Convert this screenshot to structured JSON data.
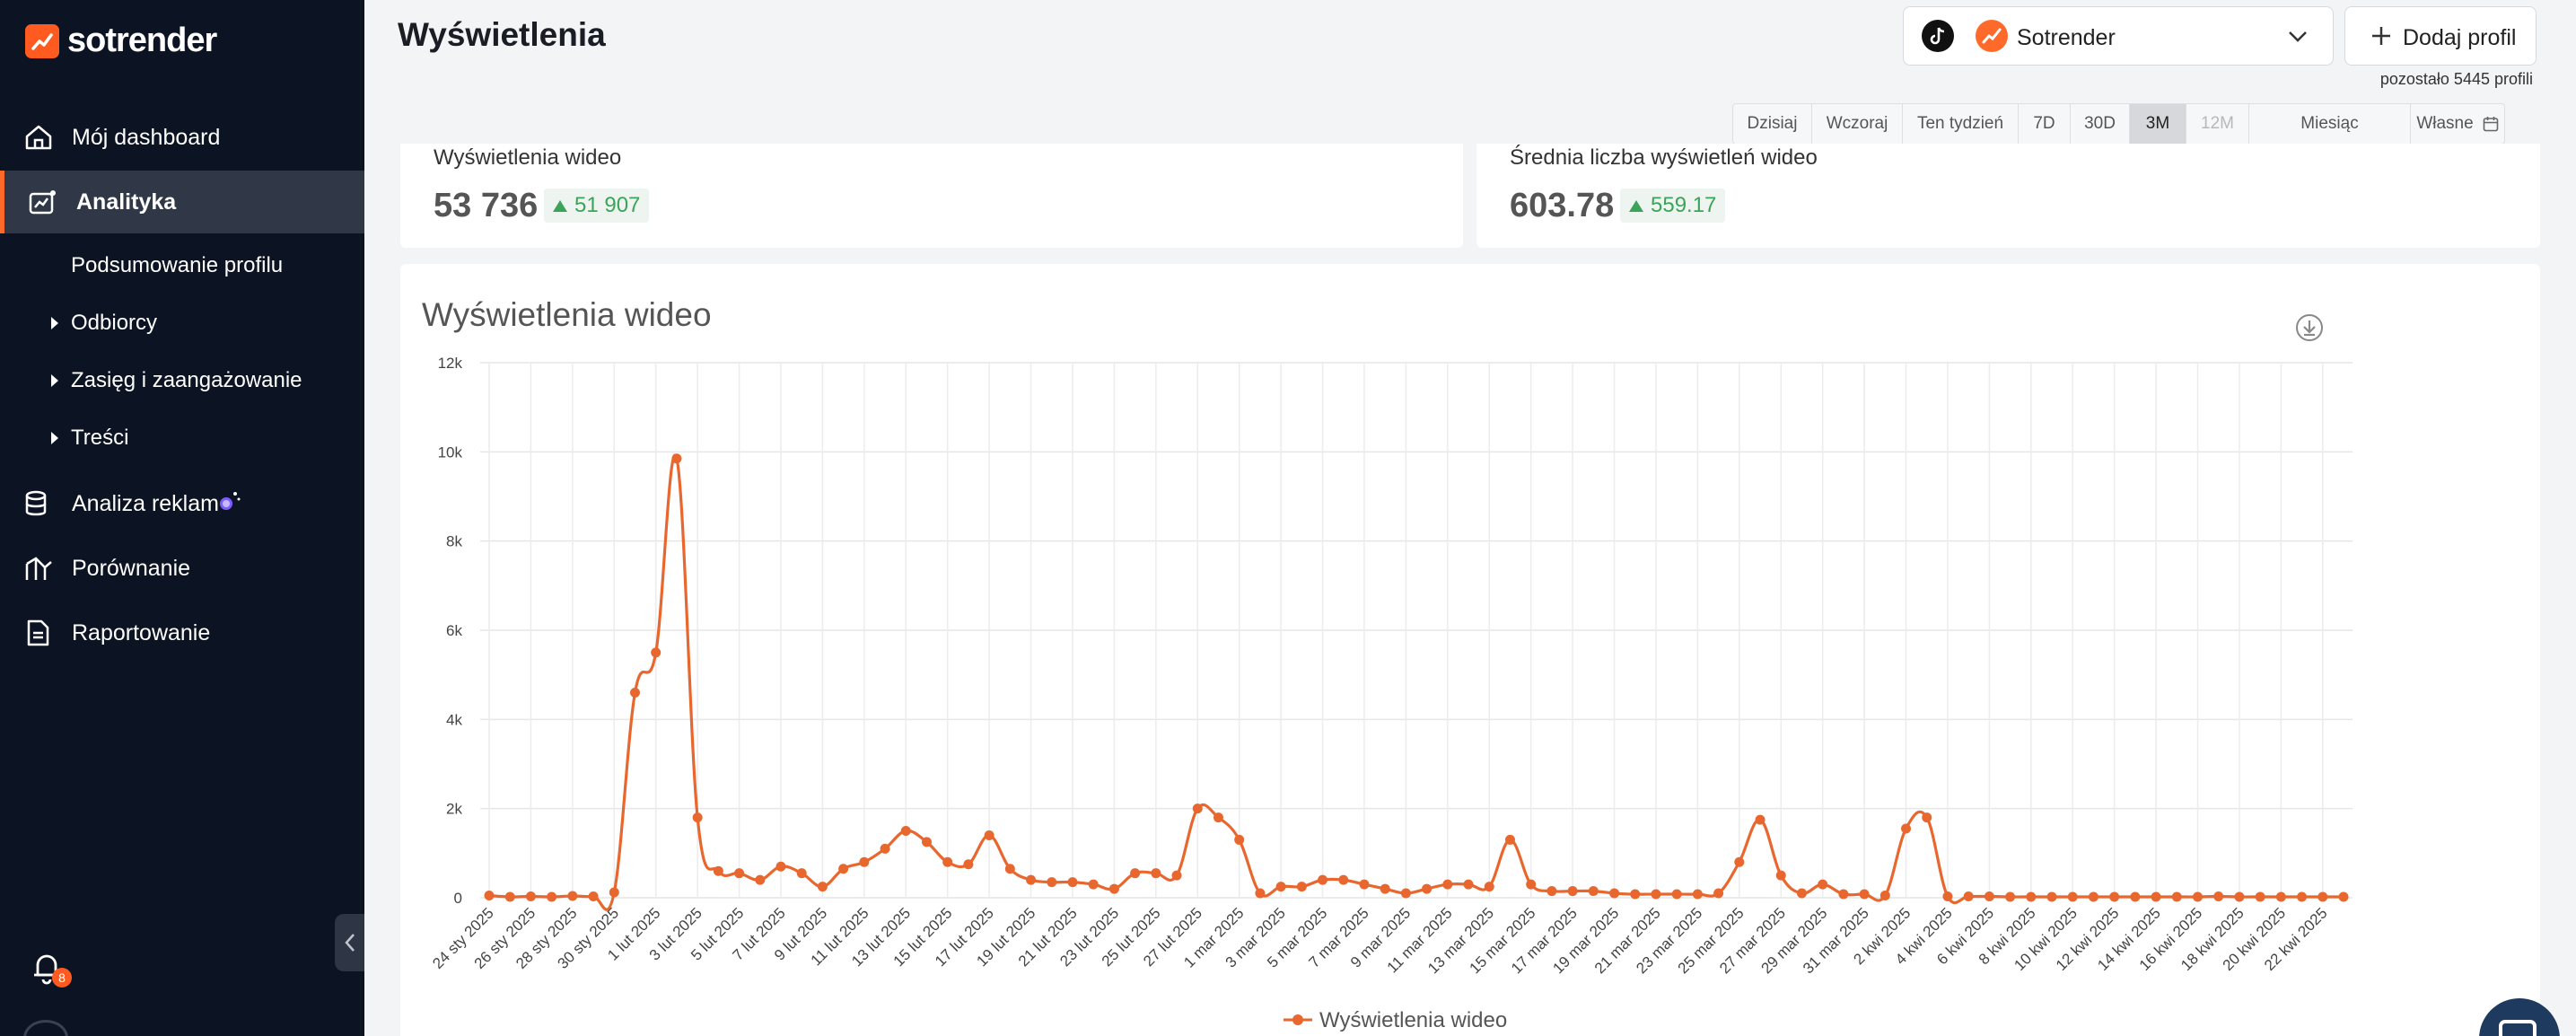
{
  "brand": {
    "name": "sotrender",
    "accent": "#ff6a2a"
  },
  "sidebar": {
    "items": [
      {
        "label": "Mój dashboard",
        "icon": "home-icon"
      },
      {
        "label": "Analityka",
        "icon": "analytics-icon",
        "active": true
      },
      {
        "label": "Analiza reklam",
        "icon": "ads-database-icon"
      },
      {
        "label": "Porównanie",
        "icon": "compare-icon"
      },
      {
        "label": "Raportowanie",
        "icon": "report-icon"
      }
    ],
    "subitems": [
      {
        "label": "Podsumowanie profilu"
      },
      {
        "label": "Odbiorcy"
      },
      {
        "label": "Zasięg i zaangażowanie"
      },
      {
        "label": "Treści"
      }
    ],
    "notifications_count": "8"
  },
  "header": {
    "title": "Wyświetlenia",
    "profile_name": "Sotrender",
    "add_profile_label": "Dodaj profil",
    "profiles_left": "pozostało 5445 profili"
  },
  "date_range": {
    "options": [
      "Dzisiaj",
      "Wczoraj",
      "Ten tydzień",
      "7D",
      "30D",
      "3M",
      "12M",
      "Miesiąc",
      "Własne"
    ],
    "selected": "3M",
    "disabled": [
      "12M"
    ]
  },
  "kpis": [
    {
      "label": "Wyświetlenia wideo",
      "value": "53 736",
      "delta": "51 907",
      "trend": "up"
    },
    {
      "label": "Średnia liczba wyświetleń wideo",
      "value": "603.78",
      "delta": "559.17",
      "trend": "up"
    }
  ],
  "chart_data": {
    "type": "line",
    "title": "Wyświetlenia wideo",
    "series": [
      {
        "name": "Wyświetlenia wideo",
        "color": "#e8672e"
      }
    ],
    "x": [
      "24 sty 2025",
      "25 sty 2025",
      "26 sty 2025",
      "27 sty 2025",
      "28 sty 2025",
      "29 sty 2025",
      "30 sty 2025",
      "31 sty 2025",
      "1 lut 2025",
      "2 lut 2025",
      "3 lut 2025",
      "4 lut 2025",
      "5 lut 2025",
      "6 lut 2025",
      "7 lut 2025",
      "8 lut 2025",
      "9 lut 2025",
      "10 lut 2025",
      "11 lut 2025",
      "12 lut 2025",
      "13 lut 2025",
      "14 lut 2025",
      "15 lut 2025",
      "16 lut 2025",
      "17 lut 2025",
      "18 lut 2025",
      "19 lut 2025",
      "20 lut 2025",
      "21 lut 2025",
      "22 lut 2025",
      "23 lut 2025",
      "24 lut 2025",
      "25 lut 2025",
      "26 lut 2025",
      "27 lut 2025",
      "28 lut 2025",
      "1 mar 2025",
      "2 mar 2025",
      "3 mar 2025",
      "4 mar 2025",
      "5 mar 2025",
      "6 mar 2025",
      "7 mar 2025",
      "8 mar 2025",
      "9 mar 2025",
      "10 mar 2025",
      "11 mar 2025",
      "12 mar 2025",
      "13 mar 2025",
      "14 mar 2025",
      "15 mar 2025",
      "16 mar 2025",
      "17 mar 2025",
      "18 mar 2025",
      "19 mar 2025",
      "20 mar 2025",
      "21 mar 2025",
      "22 mar 2025",
      "23 mar 2025",
      "24 mar 2025",
      "25 mar 2025",
      "26 mar 2025",
      "27 mar 2025",
      "28 mar 2025",
      "29 mar 2025",
      "30 mar 2025",
      "31 mar 2025",
      "1 kwi 2025",
      "2 kwi 2025",
      "3 kwi 2025",
      "4 kwi 2025",
      "5 kwi 2025",
      "6 kwi 2025",
      "7 kwi 2025",
      "8 kwi 2025",
      "9 kwi 2025",
      "10 kwi 2025",
      "11 kwi 2025",
      "12 kwi 2025",
      "13 kwi 2025",
      "14 kwi 2025",
      "15 kwi 2025",
      "16 kwi 2025",
      "17 kwi 2025",
      "18 kwi 2025",
      "19 kwi 2025",
      "20 kwi 2025",
      "21 kwi 2025",
      "22 kwi 2025",
      "23 kwi 2025"
    ],
    "values": [
      50,
      20,
      30,
      20,
      40,
      30,
      120,
      4600,
      5500,
      9850,
      1800,
      600,
      550,
      400,
      700,
      550,
      250,
      650,
      800,
      1100,
      1500,
      1250,
      800,
      750,
      1400,
      650,
      400,
      350,
      350,
      300,
      200,
      550,
      550,
      500,
      2000,
      1800,
      1300,
      100,
      250,
      250,
      400,
      400,
      300,
      200,
      100,
      200,
      300,
      300,
      250,
      1300,
      300,
      150,
      150,
      150,
      100,
      80,
      80,
      80,
      80,
      100,
      800,
      1750,
      500,
      100,
      300,
      80,
      80,
      50,
      1550,
      1800,
      30,
      30,
      30,
      20,
      20,
      20,
      20,
      20,
      20,
      20,
      20,
      20,
      20,
      30,
      20,
      20,
      20,
      20,
      20,
      20
    ],
    "tick_labels": [
      "24 sty 2025",
      "26 sty 2025",
      "28 sty 2025",
      "30 sty 2025",
      "1 lut 2025",
      "3 lut 2025",
      "5 lut 2025",
      "7 lut 2025",
      "9 lut 2025",
      "11 lut 2025",
      "13 lut 2025",
      "15 lut 2025",
      "17 lut 2025",
      "19 lut 2025",
      "21 lut 2025",
      "23 lut 2025",
      "25 lut 2025",
      "27 lut 2025",
      "1 mar 2025",
      "3 mar 2025",
      "5 mar 2025",
      "7 mar 2025",
      "9 mar 2025",
      "11 mar 2025",
      "13 mar 2025",
      "15 mar 2025",
      "17 mar 2025",
      "19 mar 2025",
      "21 mar 2025",
      "23 mar 2025",
      "25 mar 2025",
      "27 mar 2025",
      "29 mar 2025",
      "31 mar 2025",
      "2 kwi 2025",
      "4 kwi 2025",
      "6 kwi 2025",
      "8 kwi 2025",
      "10 kwi 2025",
      "12 kwi 2025",
      "14 kwi 2025",
      "16 kwi 2025",
      "18 kwi 2025",
      "20 kwi 2025",
      "22 kwi 2025"
    ],
    "y_ticks": [
      0,
      2000,
      4000,
      6000,
      8000,
      10000,
      12000
    ],
    "y_tick_labels": [
      "0",
      "2k",
      "4k",
      "6k",
      "8k",
      "10k",
      "12k"
    ],
    "ylim": [
      0,
      12000
    ],
    "grid": true,
    "legend": "bottom-center"
  }
}
